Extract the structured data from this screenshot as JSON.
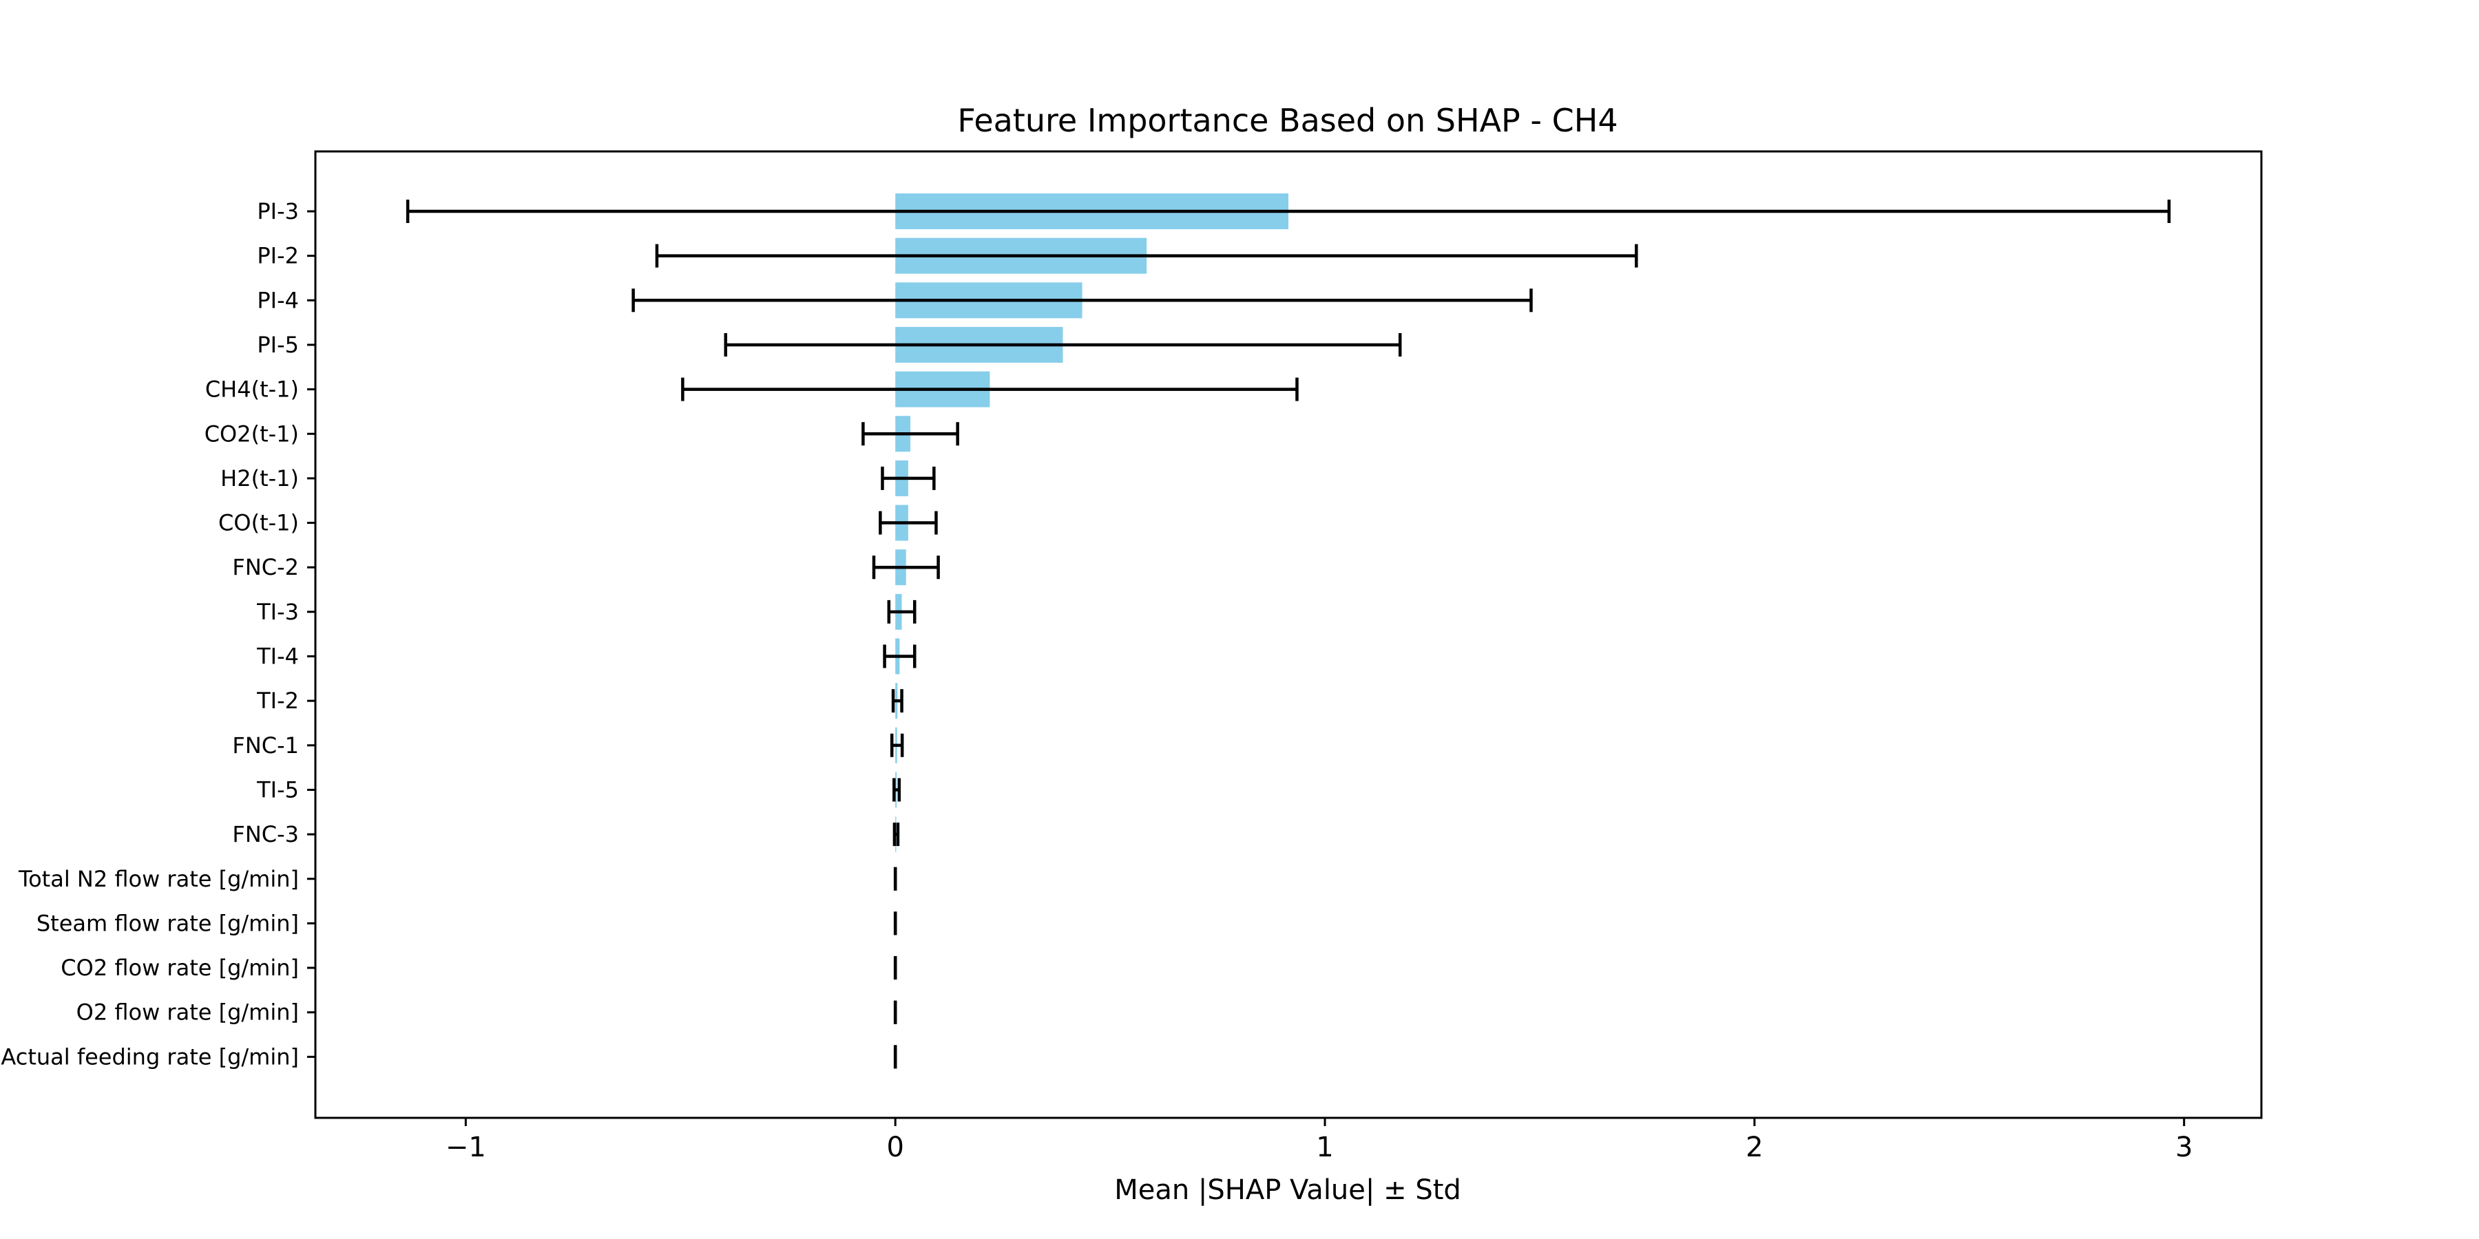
{
  "chart_data": {
    "type": "bar",
    "orientation": "horizontal",
    "title": "Feature Importance Based on SHAP - CH4",
    "xlabel": "Mean |SHAP Value| ± Std",
    "ylabel": "",
    "xlim": [
      -1.35,
      3.18
    ],
    "xticks": [
      -1,
      0,
      1,
      2,
      3
    ],
    "xtick_labels": [
      "−1",
      "0",
      "1",
      "2",
      "3"
    ],
    "bar_color": "#87ceeb",
    "error_color": "#000000",
    "categories": [
      "PI-3",
      "PI-2",
      "PI-4",
      "PI-5",
      "CH4(t-1)",
      "CO2(t-1)",
      "H2(t-1)",
      "CO(t-1)",
      "FNC-2",
      "TI-3",
      "TI-4",
      "TI-2",
      "FNC-1",
      "TI-5",
      "FNC-3",
      "Total N2 flow rate [g/min]",
      "Steam flow rate [g/min]",
      "CO2 flow rate [g/min]",
      "O2 flow rate [g/min]",
      "Actual feeding rate [g/min]"
    ],
    "values": [
      0.915,
      0.585,
      0.435,
      0.39,
      0.22,
      0.035,
      0.03,
      0.03,
      0.025,
      0.015,
      0.01,
      0.005,
      0.004,
      0.003,
      0.002,
      0.0,
      0.0,
      0.0,
      0.0,
      0.0
    ],
    "errors": [
      2.05,
      1.14,
      1.045,
      0.785,
      0.715,
      0.11,
      0.06,
      0.065,
      0.075,
      0.03,
      0.035,
      0.01,
      0.012,
      0.006,
      0.004,
      0.0,
      0.0,
      0.0,
      0.0,
      0.0
    ]
  }
}
